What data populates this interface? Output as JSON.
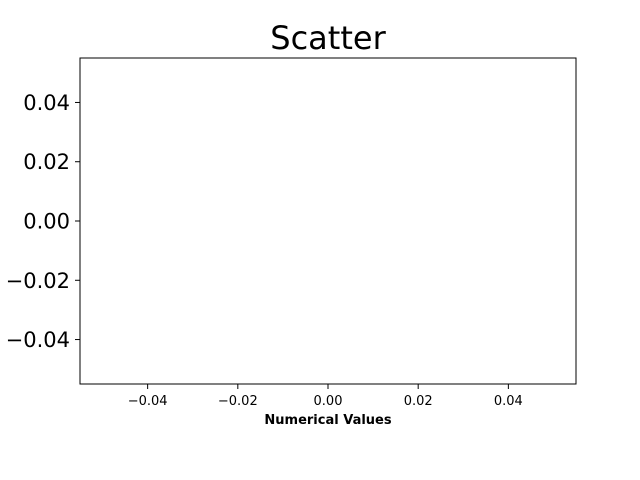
{
  "chart_data": {
    "type": "scatter",
    "title": "Scatter",
    "xlabel": "Numerical Values",
    "ylabel": "",
    "xlim": [
      -0.055,
      0.055
    ],
    "ylim": [
      -0.055,
      0.055
    ],
    "xticks": [
      -0.04,
      -0.02,
      0.0,
      0.02,
      0.04
    ],
    "xtick_labels": [
      "−0.04",
      "−0.02",
      "0.00",
      "0.02",
      "0.04"
    ],
    "yticks": [
      -0.04,
      -0.02,
      0.0,
      0.02,
      0.04
    ],
    "ytick_labels": [
      "−0.04",
      "−0.02",
      "0.00",
      "0.02",
      "0.04"
    ],
    "grid": false,
    "series": [
      {
        "x": [],
        "y": []
      }
    ]
  }
}
